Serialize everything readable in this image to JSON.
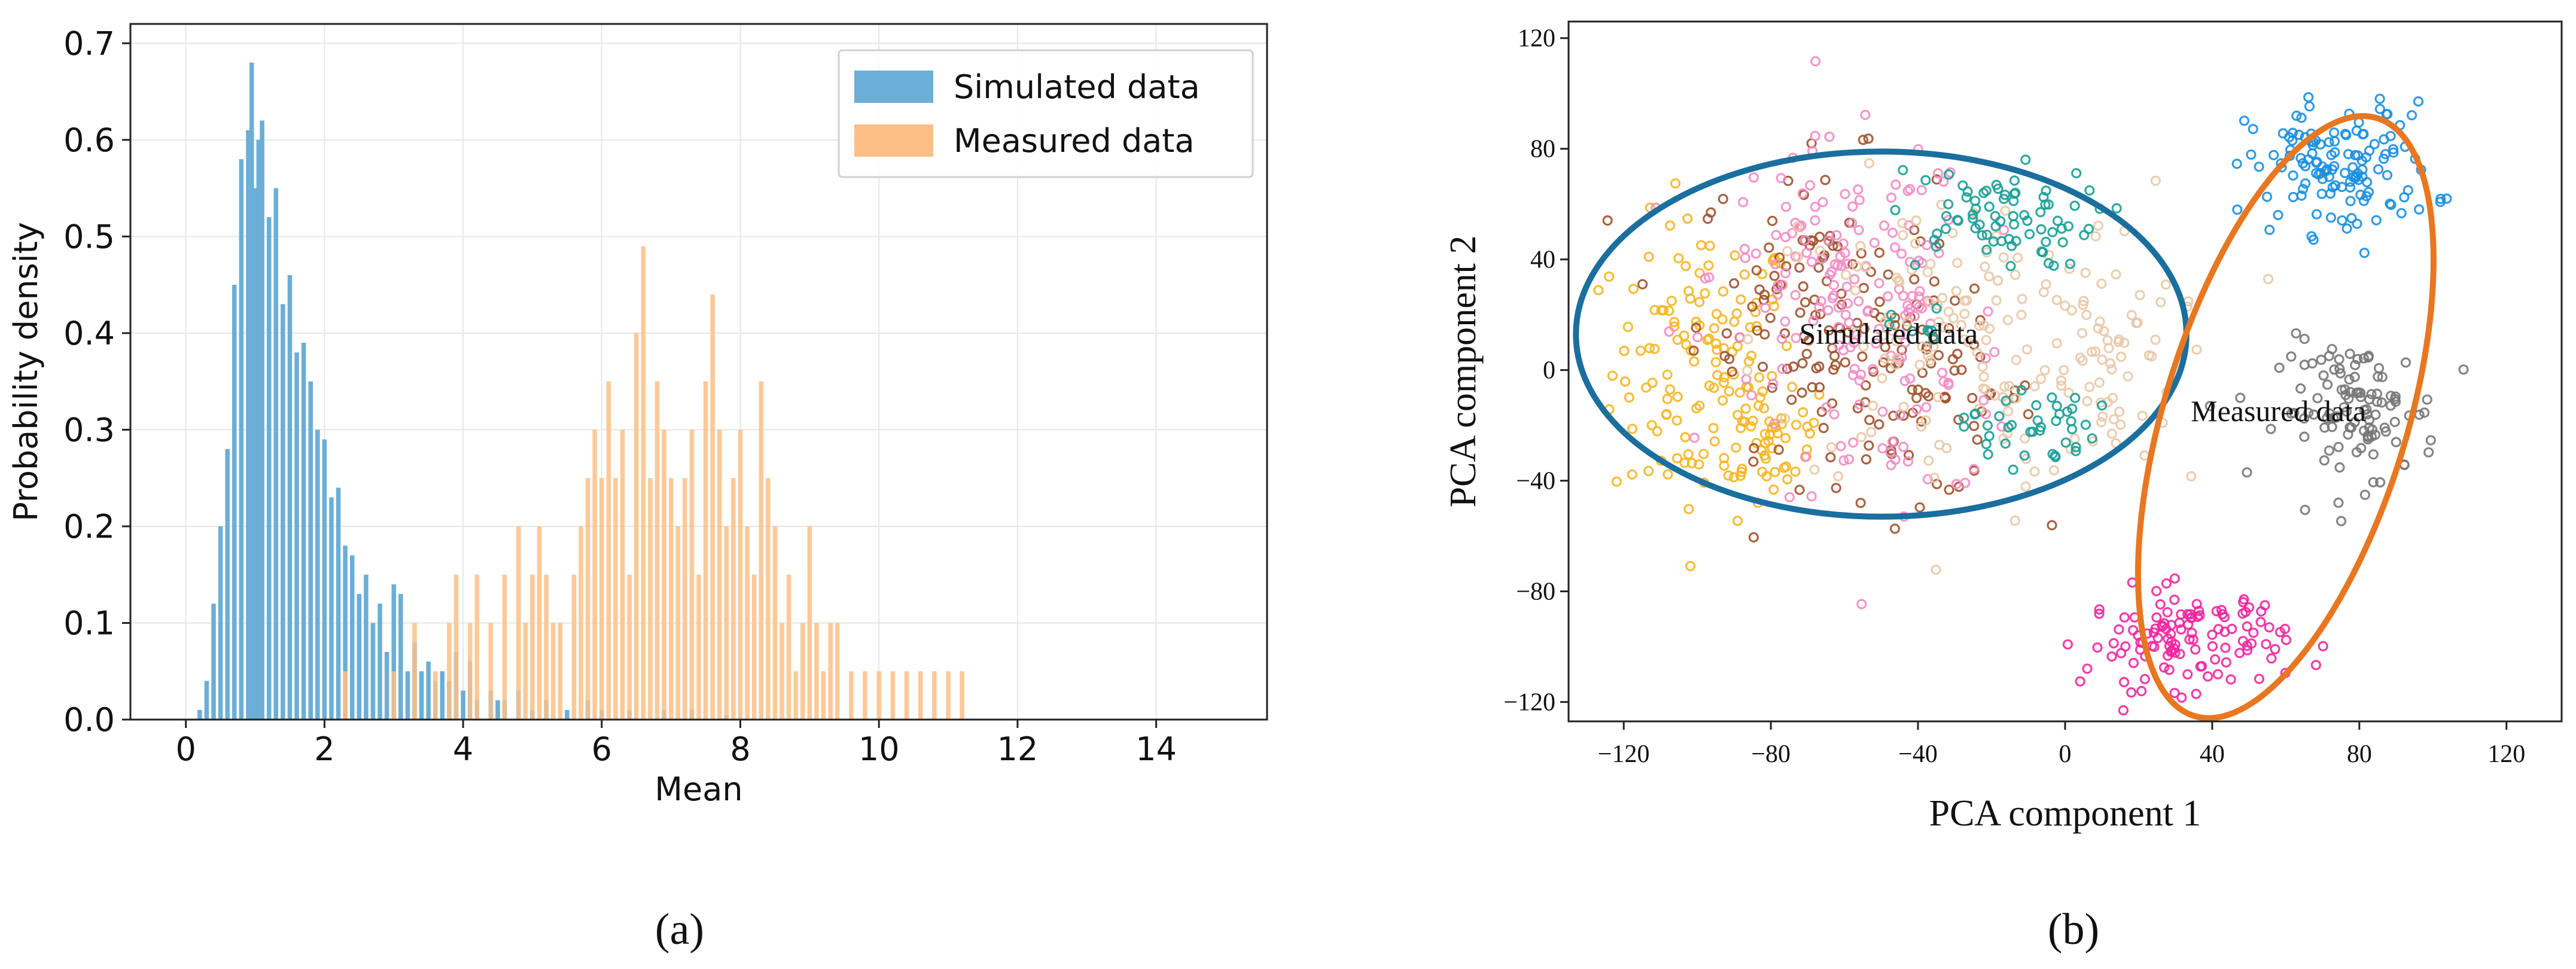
{
  "chart_data": [
    {
      "panel": "(a)",
      "type": "bar",
      "subtype": "overlaid histogram",
      "xlabel": "Mean",
      "ylabel": "Probability density",
      "xlim": [
        -0.8,
        15.6
      ],
      "ylim": [
        0,
        0.72
      ],
      "xticks": [
        "0",
        "2",
        "4",
        "6",
        "8",
        "10",
        "12",
        "14"
      ],
      "yticks": [
        "0.0",
        "0.1",
        "0.2",
        "0.3",
        "0.4",
        "0.5",
        "0.6",
        "0.7"
      ],
      "grid": true,
      "legend_position": "top-right",
      "bin_width": 0.065,
      "series": [
        {
          "name": "Simulated data",
          "color": "#6baed6",
          "bins": [
            [
              0.2,
              0.01
            ],
            [
              0.3,
              0.04
            ],
            [
              0.4,
              0.12
            ],
            [
              0.5,
              0.2
            ],
            [
              0.6,
              0.28
            ],
            [
              0.7,
              0.45
            ],
            [
              0.8,
              0.58
            ],
            [
              0.9,
              0.61
            ],
            [
              0.95,
              0.68
            ],
            [
              1.0,
              0.55
            ],
            [
              1.05,
              0.6
            ],
            [
              1.1,
              0.62
            ],
            [
              1.2,
              0.52
            ],
            [
              1.3,
              0.55
            ],
            [
              1.4,
              0.43
            ],
            [
              1.5,
              0.46
            ],
            [
              1.6,
              0.38
            ],
            [
              1.7,
              0.39
            ],
            [
              1.8,
              0.35
            ],
            [
              1.9,
              0.3
            ],
            [
              2.0,
              0.29
            ],
            [
              2.1,
              0.23
            ],
            [
              2.2,
              0.24
            ],
            [
              2.3,
              0.18
            ],
            [
              2.4,
              0.17
            ],
            [
              2.5,
              0.13
            ],
            [
              2.6,
              0.15
            ],
            [
              2.7,
              0.1
            ],
            [
              2.8,
              0.12
            ],
            [
              2.9,
              0.07
            ],
            [
              3.0,
              0.14
            ],
            [
              3.1,
              0.13
            ],
            [
              3.2,
              0.05
            ],
            [
              3.3,
              0.08
            ],
            [
              3.4,
              0.05
            ],
            [
              3.5,
              0.06
            ],
            [
              3.6,
              0.04
            ],
            [
              3.7,
              0.05
            ],
            [
              3.8,
              0.04
            ],
            [
              3.9,
              0.07
            ],
            [
              4.0,
              0.03
            ],
            [
              4.1,
              0.06
            ],
            [
              4.2,
              0.02
            ],
            [
              4.4,
              0.03
            ],
            [
              4.5,
              0.02
            ],
            [
              4.6,
              0.02
            ],
            [
              4.8,
              0.03
            ],
            [
              5.0,
              0.01
            ],
            [
              5.2,
              0.02
            ],
            [
              5.5,
              0.01
            ],
            [
              5.8,
              0.02
            ],
            [
              6.0,
              0.01
            ],
            [
              6.4,
              0.01
            ],
            [
              6.9,
              0.01
            ],
            [
              7.3,
              0.01
            ],
            [
              7.8,
              0.005
            ]
          ]
        },
        {
          "name": "Measured data",
          "color": "#fdbf86",
          "bins": [
            [
              2.3,
              0.05
            ],
            [
              3.0,
              0.05
            ],
            [
              3.3,
              0.1
            ],
            [
              3.6,
              0.05
            ],
            [
              3.8,
              0.1
            ],
            [
              3.9,
              0.15
            ],
            [
              4.1,
              0.1
            ],
            [
              4.2,
              0.15
            ],
            [
              4.4,
              0.1
            ],
            [
              4.6,
              0.15
            ],
            [
              4.8,
              0.2
            ],
            [
              4.9,
              0.1
            ],
            [
              5.0,
              0.15
            ],
            [
              5.1,
              0.2
            ],
            [
              5.2,
              0.15
            ],
            [
              5.3,
              0.1
            ],
            [
              5.4,
              0.1
            ],
            [
              5.6,
              0.15
            ],
            [
              5.7,
              0.2
            ],
            [
              5.8,
              0.25
            ],
            [
              5.9,
              0.3
            ],
            [
              6.0,
              0.25
            ],
            [
              6.1,
              0.35
            ],
            [
              6.2,
              0.25
            ],
            [
              6.3,
              0.3
            ],
            [
              6.4,
              0.15
            ],
            [
              6.5,
              0.4
            ],
            [
              6.6,
              0.49
            ],
            [
              6.7,
              0.25
            ],
            [
              6.8,
              0.35
            ],
            [
              6.9,
              0.3
            ],
            [
              7.0,
              0.25
            ],
            [
              7.1,
              0.2
            ],
            [
              7.2,
              0.25
            ],
            [
              7.3,
              0.3
            ],
            [
              7.4,
              0.15
            ],
            [
              7.5,
              0.35
            ],
            [
              7.6,
              0.44
            ],
            [
              7.7,
              0.3
            ],
            [
              7.8,
              0.2
            ],
            [
              7.9,
              0.25
            ],
            [
              8.0,
              0.3
            ],
            [
              8.1,
              0.2
            ],
            [
              8.2,
              0.15
            ],
            [
              8.3,
              0.35
            ],
            [
              8.4,
              0.25
            ],
            [
              8.5,
              0.2
            ],
            [
              8.6,
              0.1
            ],
            [
              8.7,
              0.15
            ],
            [
              8.8,
              0.05
            ],
            [
              8.9,
              0.1
            ],
            [
              9.0,
              0.2
            ],
            [
              9.1,
              0.1
            ],
            [
              9.2,
              0.05
            ],
            [
              9.3,
              0.1
            ],
            [
              9.4,
              0.1
            ],
            [
              9.6,
              0.05
            ],
            [
              9.8,
              0.05
            ],
            [
              10.0,
              0.05
            ],
            [
              10.2,
              0.05
            ],
            [
              10.4,
              0.05
            ],
            [
              10.6,
              0.05
            ],
            [
              10.8,
              0.05
            ],
            [
              11.0,
              0.05
            ],
            [
              11.2,
              0.05
            ]
          ]
        }
      ]
    },
    {
      "panel": "(b)",
      "type": "scatter",
      "xlabel": "PCA component 1",
      "ylabel": "PCA component 2",
      "xlim": [
        -135,
        135
      ],
      "ylim": [
        -127,
        126
      ],
      "xticks": [
        "−120",
        "−80",
        "−40",
        "0",
        "40",
        "80",
        "120"
      ],
      "yticks": [
        "−120",
        "−80",
        "−40",
        "0",
        "40",
        "80",
        "120"
      ],
      "grid": false,
      "annotations": [
        {
          "text": "Simulated data",
          "x": -48,
          "y": 13,
          "ellipse": {
            "cx": -50,
            "cy": 13,
            "rx": 83,
            "ry": 66,
            "angle": 0,
            "color": "#1a6f9e"
          }
        },
        {
          "text": "Measured data",
          "x": 58,
          "y": -15,
          "ellipse": {
            "cx": 60,
            "cy": -17,
            "rx": 33,
            "ry": 113,
            "angle": 17,
            "color": "#e87722"
          }
        }
      ],
      "clusters": [
        {
          "color": "#f5b622",
          "cx": -98,
          "cy": 0,
          "sx": 14,
          "sy": 30,
          "n": 130
        },
        {
          "color": "#f5b622",
          "cx": -80,
          "cy": -25,
          "sx": 10,
          "sy": 12,
          "n": 40
        },
        {
          "color": "#a0522d",
          "cx": -68,
          "cy": 25,
          "sx": 18,
          "sy": 28,
          "n": 110
        },
        {
          "color": "#a0522d",
          "cx": -40,
          "cy": -10,
          "sx": 18,
          "sy": 20,
          "n": 70
        },
        {
          "color": "#f28dc4",
          "cx": -60,
          "cy": 35,
          "sx": 20,
          "sy": 26,
          "n": 120
        },
        {
          "color": "#f28dc4",
          "cx": -45,
          "cy": -5,
          "sx": 20,
          "sy": 22,
          "n": 60
        },
        {
          "color": "#e8c9a8",
          "cx": -30,
          "cy": 10,
          "sx": 30,
          "sy": 32,
          "n": 130
        },
        {
          "color": "#e8c9a8",
          "cx": 10,
          "cy": 5,
          "sx": 12,
          "sy": 28,
          "n": 60
        },
        {
          "color": "#1a9e96",
          "cx": -20,
          "cy": 55,
          "sx": 16,
          "sy": 10,
          "n": 75
        },
        {
          "color": "#1a9e96",
          "cx": -10,
          "cy": -20,
          "sx": 10,
          "sy": 8,
          "n": 40
        },
        {
          "color": "#1a9e96",
          "cx": -40,
          "cy": 15,
          "sx": 4,
          "sy": 4,
          "n": 8
        },
        {
          "color": "#1a8fe0",
          "cx": 75,
          "cy": 73,
          "sx": 14,
          "sy": 13,
          "n": 130
        },
        {
          "color": "#777777",
          "cx": 80,
          "cy": -15,
          "sx": 12,
          "sy": 14,
          "n": 110
        },
        {
          "color": "#f0269e",
          "cx": 33,
          "cy": -97,
          "sx": 15,
          "sy": 10,
          "n": 120
        }
      ]
    }
  ],
  "panel_labels": [
    "(a)",
    "(b)"
  ]
}
